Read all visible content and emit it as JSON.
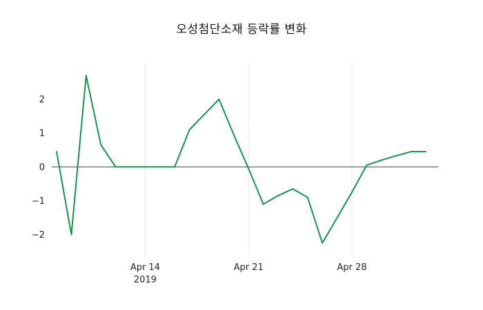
{
  "title": "오성첨단소재 등락률 변화",
  "chart_data": {
    "type": "line",
    "title": "오성첨단소재 등락률 변화",
    "series_name": "등락률",
    "x": [
      "Apr 8",
      "Apr 9",
      "Apr 10",
      "Apr 11",
      "Apr 12",
      "Apr 13",
      "Apr 14",
      "Apr 15",
      "Apr 16",
      "Apr 17",
      "Apr 18",
      "Apr 19",
      "Apr 20",
      "Apr 21",
      "Apr 22",
      "Apr 23",
      "Apr 24",
      "Apr 25",
      "Apr 26",
      "Apr 27",
      "Apr 28",
      "Apr 29",
      "Apr 30",
      "May 1",
      "May 2",
      "May 3"
    ],
    "values": [
      0.45,
      -2.0,
      2.7,
      0.65,
      0,
      0,
      0,
      0,
      0,
      1.1,
      1.55,
      2.0,
      0.95,
      -0.05,
      -1.1,
      -0.85,
      -0.65,
      -0.9,
      -2.25,
      -1.5,
      -0.75,
      0.05,
      0.2,
      0.33,
      0.45,
      0.45
    ],
    "y_ticks": [
      -2,
      -1,
      0,
      1,
      2
    ],
    "x_ticks": [
      {
        "label": "Apr 14",
        "sub": "2019",
        "index": 6
      },
      {
        "label": "Apr 21",
        "index": 13
      },
      {
        "label": "Apr 28",
        "index": 20
      }
    ],
    "ylim": [
      -2.6,
      3.1
    ],
    "xlabel": "",
    "ylabel": "",
    "grid": "vertical-only",
    "legend": "none",
    "line_color": "#17934c",
    "grid_color": "#e6e6e6",
    "zero_line_color": "#404040"
  }
}
